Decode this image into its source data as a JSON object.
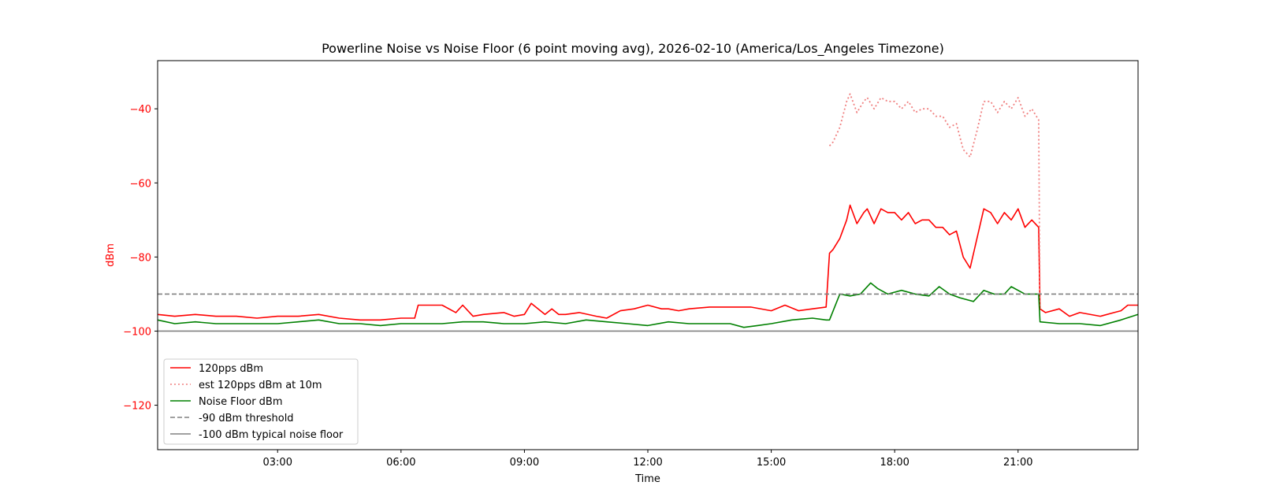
{
  "chart_data": {
    "type": "line",
    "title": "Powerline Noise vs Noise Floor (6 point moving avg), 2026-02-10 (America/Los_Angeles Timezone)",
    "xlabel": "Time",
    "ylabel": "dBm",
    "xlim": [
      "00:05",
      "23:55"
    ],
    "ylim": [
      -132,
      -27
    ],
    "xticks": [
      "03:00",
      "06:00",
      "09:00",
      "12:00",
      "15:00",
      "18:00",
      "21:00"
    ],
    "yticks": [
      -40,
      -60,
      -80,
      -100,
      -120
    ],
    "grid": false,
    "legend_position": "lower-left",
    "colors": {
      "signal": "#ff0000",
      "estimate": "#f08080",
      "noise_floor": "#008000",
      "threshold": "#808080",
      "typical_floor": "#808080",
      "ylabel": "#ff0000"
    },
    "series": [
      {
        "name": "120pps dBm",
        "style": "solid",
        "color": "#ff0000",
        "x": [
          "00:05",
          "00:30",
          "01:00",
          "01:30",
          "02:00",
          "02:30",
          "03:00",
          "03:30",
          "04:00",
          "04:30",
          "05:00",
          "05:30",
          "06:00",
          "06:20",
          "06:25",
          "06:40",
          "07:00",
          "07:20",
          "07:30",
          "07:45",
          "08:00",
          "08:30",
          "08:45",
          "09:00",
          "09:10",
          "09:20",
          "09:30",
          "09:40",
          "09:50",
          "10:00",
          "10:20",
          "10:45",
          "11:00",
          "11:20",
          "11:40",
          "12:00",
          "12:20",
          "12:30",
          "12:45",
          "13:00",
          "13:30",
          "14:00",
          "14:30",
          "15:00",
          "15:20",
          "15:40",
          "16:00",
          "16:20",
          "16:25",
          "16:30",
          "16:40",
          "16:50",
          "16:55",
          "17:05",
          "17:15",
          "17:20",
          "17:30",
          "17:40",
          "17:50",
          "18:00",
          "18:10",
          "18:20",
          "18:30",
          "18:40",
          "18:50",
          "19:00",
          "19:10",
          "19:20",
          "19:30",
          "19:40",
          "19:50",
          "20:00",
          "20:10",
          "20:20",
          "20:30",
          "20:40",
          "20:50",
          "21:00",
          "21:10",
          "21:20",
          "21:30",
          "21:32",
          "21:40",
          "22:00",
          "22:15",
          "22:30",
          "23:00",
          "23:20",
          "23:30",
          "23:40",
          "23:55"
        ],
        "y": [
          -95.5,
          -96,
          -95.5,
          -96,
          -96,
          -96.5,
          -96,
          -96,
          -95.5,
          -96.5,
          -97,
          -97,
          -96.5,
          -96.5,
          -93,
          -93,
          -93,
          -95,
          -93,
          -96,
          -95.5,
          -95,
          -96,
          -95.5,
          -92.5,
          -94,
          -95.5,
          -94,
          -95.5,
          -95.5,
          -95,
          -96,
          -96.5,
          -94.5,
          -94,
          -93,
          -94,
          -94,
          -94.5,
          -94,
          -93.5,
          -93.5,
          -93.5,
          -94.5,
          -93,
          -94.5,
          -94,
          -93.5,
          -79,
          -78,
          -75,
          -70,
          -66,
          -71,
          -68,
          -67,
          -71,
          -67,
          -68,
          -68,
          -70,
          -68,
          -71,
          -70,
          -70,
          -72,
          -72,
          -74,
          -73,
          -80,
          -83,
          -75,
          -67,
          -68,
          -71,
          -68,
          -70,
          -67,
          -72,
          -70,
          -72,
          -94,
          -95,
          -94,
          -96,
          -95,
          -96,
          -95,
          -94.5,
          -93,
          -93
        ]
      },
      {
        "name": "est 120pps dBm at 10m",
        "style": "dotted",
        "color": "#f08080",
        "x": [
          "16:25",
          "16:30",
          "16:40",
          "16:50",
          "16:55",
          "17:05",
          "17:15",
          "17:20",
          "17:30",
          "17:40",
          "17:50",
          "18:00",
          "18:10",
          "18:20",
          "18:30",
          "18:40",
          "18:50",
          "19:00",
          "19:10",
          "19:20",
          "19:30",
          "19:40",
          "19:50",
          "20:00",
          "20:10",
          "20:20",
          "20:30",
          "20:40",
          "20:50",
          "21:00",
          "21:10",
          "21:20",
          "21:30",
          "21:32"
        ],
        "y": [
          -50,
          -49,
          -45,
          -38,
          -36,
          -41,
          -38,
          -37,
          -40,
          -37,
          -38,
          -38,
          -40,
          -38,
          -41,
          -40,
          -40,
          -42,
          -42,
          -45,
          -44,
          -51,
          -53,
          -46,
          -38,
          -38,
          -41,
          -38,
          -40,
          -37,
          -42,
          -40,
          -43,
          -94
        ]
      },
      {
        "name": "Noise Floor dBm",
        "style": "solid",
        "color": "#008000",
        "x": [
          "00:05",
          "00:30",
          "01:00",
          "01:30",
          "02:00",
          "02:30",
          "03:00",
          "03:30",
          "04:00",
          "04:30",
          "05:00",
          "05:30",
          "06:00",
          "06:30",
          "07:00",
          "07:30",
          "08:00",
          "08:30",
          "09:00",
          "09:30",
          "10:00",
          "10:30",
          "11:00",
          "11:30",
          "12:00",
          "12:30",
          "13:00",
          "13:30",
          "14:00",
          "14:20",
          "14:40",
          "15:00",
          "15:30",
          "16:00",
          "16:20",
          "16:25",
          "16:40",
          "16:55",
          "17:10",
          "17:25",
          "17:35",
          "17:50",
          "18:10",
          "18:30",
          "18:50",
          "19:05",
          "19:20",
          "19:35",
          "19:55",
          "20:10",
          "20:25",
          "20:40",
          "20:50",
          "21:10",
          "21:30",
          "21:32",
          "22:00",
          "22:30",
          "23:00",
          "23:30",
          "23:55"
        ],
        "y": [
          -97,
          -98,
          -97.5,
          -98,
          -98,
          -98,
          -98,
          -97.5,
          -97,
          -98,
          -98,
          -98.5,
          -98,
          -98,
          -98,
          -97.5,
          -97.5,
          -98,
          -98,
          -97.5,
          -98,
          -97,
          -97.5,
          -98,
          -98.5,
          -97.5,
          -98,
          -98,
          -98,
          -99,
          -98.5,
          -98,
          -97,
          -96.5,
          -97,
          -97,
          -90,
          -90.5,
          -90,
          -87,
          -88.5,
          -90,
          -89,
          -90,
          -90.5,
          -88,
          -90,
          -91,
          -92,
          -89,
          -90,
          -90,
          -88,
          -90,
          -90,
          -97.5,
          -98,
          -98,
          -98.5,
          -97,
          -95.5
        ]
      },
      {
        "name": "-90 dBm threshold",
        "style": "dashed",
        "color": "#808080",
        "x": [
          "00:05",
          "23:55"
        ],
        "y": [
          -90,
          -90
        ]
      },
      {
        "name": "-100 dBm typical noise floor",
        "style": "solid",
        "color": "#808080",
        "x": [
          "00:05",
          "23:55"
        ],
        "y": [
          -100,
          -100
        ]
      }
    ]
  }
}
